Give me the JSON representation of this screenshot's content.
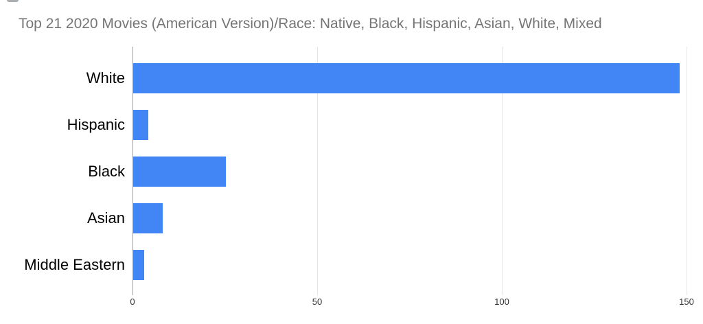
{
  "chart_data": {
    "type": "bar",
    "orientation": "horizontal",
    "title": "Top 21 2020 Movies (American Version)/Race: Native, Black, Hispanic, Asian, White, Mixed",
    "categories": [
      "White",
      "Hispanic",
      "Black",
      "Asian",
      "Middle Eastern"
    ],
    "values": [
      148,
      4,
      25,
      8,
      3
    ],
    "x_ticks": [
      0,
      50,
      100,
      150
    ],
    "xlim": [
      0,
      151.5
    ],
    "grid": true,
    "legend_position": "none",
    "colors": {
      "bar": "#4285f4",
      "title_text": "#757575",
      "axis_tick_text": "#333333",
      "category_label_text": "#000000",
      "gridline": "#e6e6e6",
      "baseline": "#9e9e9e",
      "background": "#ffffff"
    }
  }
}
